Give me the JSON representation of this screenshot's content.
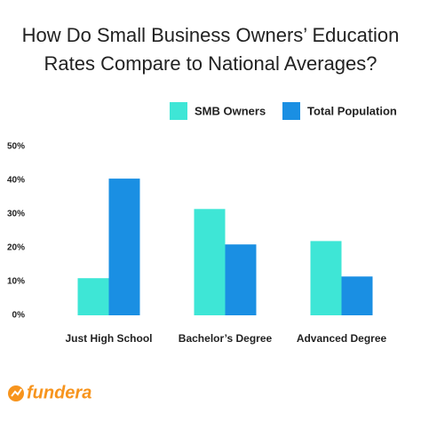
{
  "chart_data": {
    "type": "bar",
    "title": "How Do Small Business Owners’ Education Rates Compare to National Averages?",
    "categories": [
      "Just High School",
      "Bachelor’s Degree",
      "Advanced Degree"
    ],
    "series": [
      {
        "name": "SMB Owners",
        "color": "#3ee6d6",
        "values": [
          11,
          31.5,
          22
        ]
      },
      {
        "name": "Total Population",
        "color": "#1a8fe3",
        "values": [
          40.5,
          21,
          11.5
        ]
      }
    ],
    "ylim": [
      0,
      50
    ],
    "yticks": [
      {
        "value": 0,
        "label": "0%"
      },
      {
        "value": 10,
        "label": "10%"
      },
      {
        "value": 20,
        "label": "20%"
      },
      {
        "value": 30,
        "label": "30%"
      },
      {
        "value": 40,
        "label": "40%"
      },
      {
        "value": 50,
        "label": "50%"
      }
    ],
    "legend": "top-right",
    "grid": false
  },
  "logo": "fundera"
}
